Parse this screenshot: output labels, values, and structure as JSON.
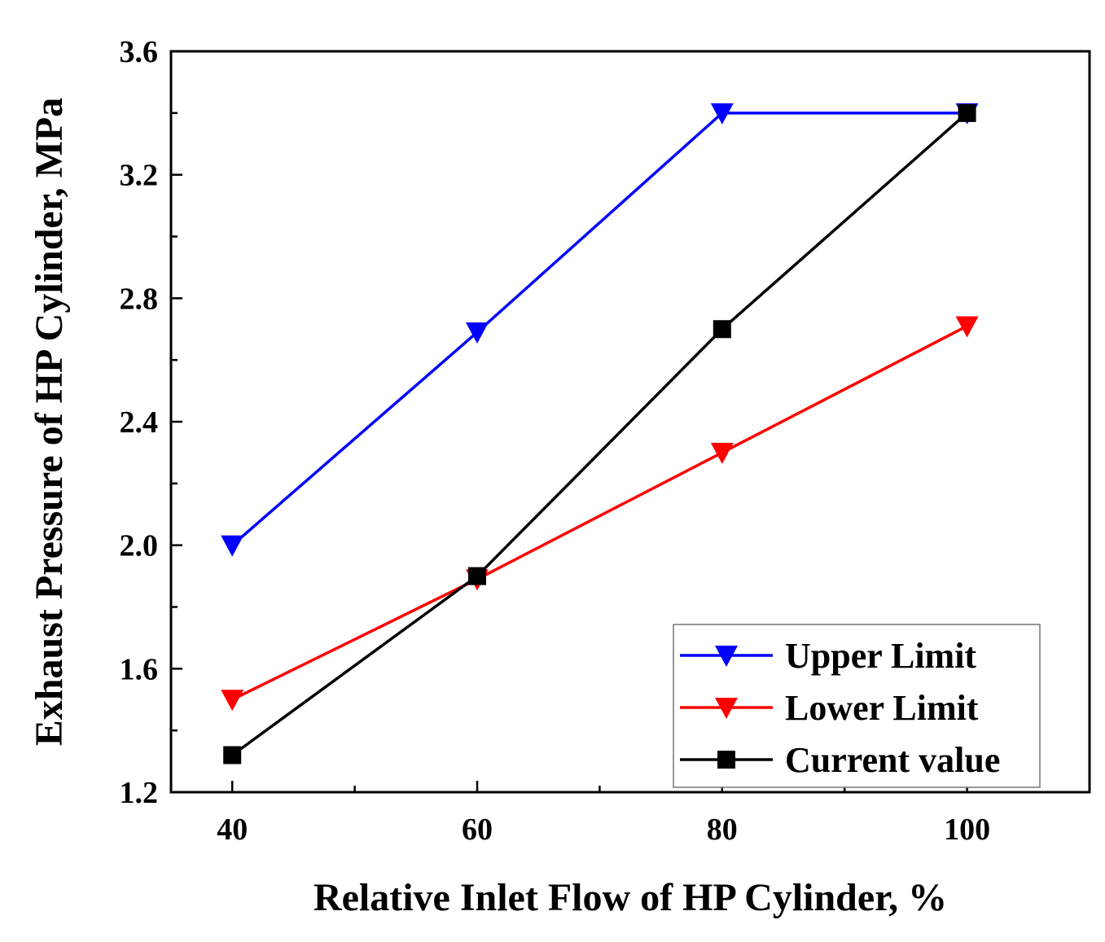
{
  "chart_data": {
    "type": "line",
    "xlabel": "Relative Inlet Flow of HP Cylinder, %",
    "ylabel": "Exhaust Pressure of HP Cylinder, MPa",
    "xlim": [
      35,
      110
    ],
    "ylim": [
      1.2,
      3.6
    ],
    "x_ticks": [
      {
        "value": 40,
        "label": "40"
      },
      {
        "value": 60,
        "label": "60"
      },
      {
        "value": 80,
        "label": "80"
      },
      {
        "value": 100,
        "label": "100"
      }
    ],
    "x_minor_ticks": [
      50,
      70,
      90
    ],
    "y_ticks": [
      {
        "value": 1.2,
        "label": "1.2"
      },
      {
        "value": 1.6,
        "label": "1.6"
      },
      {
        "value": 2.0,
        "label": "2.0"
      },
      {
        "value": 2.4,
        "label": "2.4"
      },
      {
        "value": 2.8,
        "label": "2.8"
      },
      {
        "value": 3.2,
        "label": "3.2"
      },
      {
        "value": 3.6,
        "label": "3.6"
      }
    ],
    "y_minor_ticks": [
      1.4,
      1.8,
      2.2,
      2.6,
      3.0,
      3.4
    ],
    "x": [
      40,
      60,
      80,
      100
    ],
    "series": [
      {
        "name": "Upper Limit",
        "values": [
          2.0,
          2.69,
          3.4,
          3.4
        ],
        "color": "#0000ff",
        "marker": "triangle-down"
      },
      {
        "name": "Lower Limit",
        "values": [
          1.5,
          1.89,
          2.3,
          2.71
        ],
        "color": "#ff0000",
        "marker": "triangle-down"
      },
      {
        "name": "Current value",
        "values": [
          1.32,
          1.9,
          2.7,
          3.4
        ],
        "color": "#000000",
        "marker": "square"
      }
    ],
    "legend": {
      "position": "bottom-right"
    },
    "grid": false
  }
}
